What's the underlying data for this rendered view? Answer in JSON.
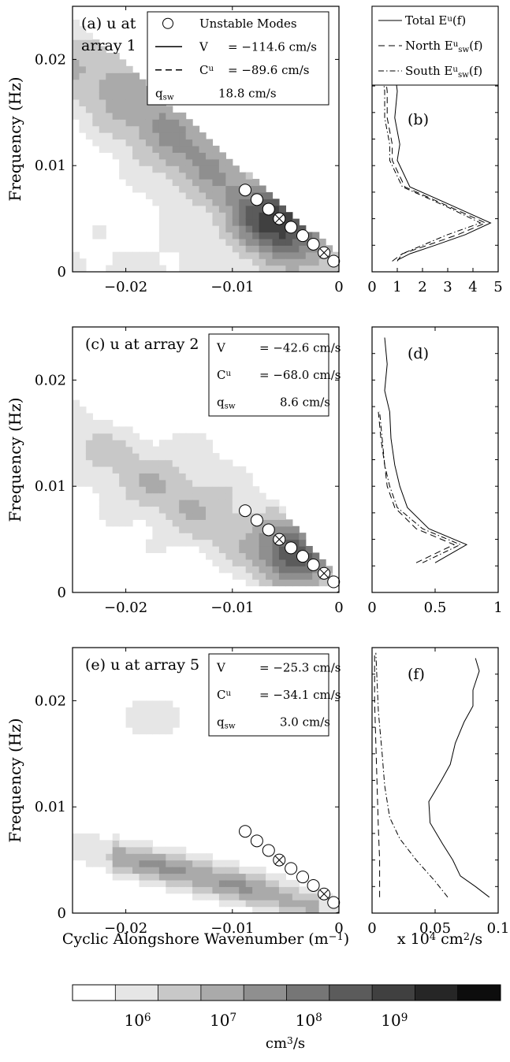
{
  "chart_data": [
    {
      "panel": "a",
      "type": "contour",
      "title": "(a) u at array 1",
      "ylabel": "Frequency (Hz)",
      "xlim": [
        -0.025,
        0
      ],
      "ylim": [
        0,
        0.025
      ],
      "xticks": [
        "-0.02",
        "-0.01",
        "0"
      ],
      "yticks": [
        "0",
        "0.01",
        "0.02"
      ],
      "legend": {
        "placement": "top-right",
        "entries": [
          {
            "symbol": "circle",
            "label": "Unstable Modes"
          },
          {
            "symbol": "solid",
            "name": "V",
            "value": "= −114.6 cm/s"
          },
          {
            "symbol": "dashed",
            "name": "C",
            "sup": "u",
            "value": "= −89.6 cm/s"
          },
          {
            "symbol": "none",
            "name": "q",
            "sub": "sw",
            "value": "18.8 cm/s"
          }
        ]
      },
      "lines": [
        {
          "style": "solid",
          "speed_cm_s": -114.6
        },
        {
          "style": "dashed",
          "speed_cm_s": -89.6
        }
      ],
      "unstable_modes": [
        {
          "k": -0.0088,
          "f": 0.0077
        },
        {
          "k": -0.0077,
          "f": 0.0068
        },
        {
          "k": -0.0066,
          "f": 0.0059
        },
        {
          "k": -0.0056,
          "f": 0.005,
          "marked": true
        },
        {
          "k": -0.0045,
          "f": 0.0042
        },
        {
          "k": -0.0034,
          "f": 0.0034
        },
        {
          "k": -0.0024,
          "f": 0.0026
        },
        {
          "k": -0.0014,
          "f": 0.0018,
          "marked": true
        },
        {
          "k": -0.0005,
          "f": 0.001
        }
      ]
    },
    {
      "panel": "b",
      "type": "line",
      "label": "(b)",
      "xlim": [
        0,
        5
      ],
      "xticks": [
        "0",
        "1",
        "2",
        "3",
        "4",
        "5"
      ],
      "ylim": [
        0,
        0.025
      ],
      "legend": {
        "placement": "top",
        "entries": [
          {
            "style": "solid",
            "label": "Total E",
            "sup": "u",
            "tail": "(f)"
          },
          {
            "style": "dashed",
            "label": "North E",
            "sup": "u",
            "sub": "sw",
            "tail": "(f)"
          },
          {
            "style": "dashdot",
            "label": "South E",
            "sup": "u",
            "sub": "sw",
            "tail": "(f)"
          }
        ]
      },
      "series": [
        {
          "style": "solid",
          "f": [
            0.0011,
            0.0017,
            0.0025,
            0.0035,
            0.0046,
            0.0062,
            0.008,
            0.0105,
            0.012,
            0.0145,
            0.017,
            0.019,
            0.0215,
            0.0235
          ],
          "E": [
            1.0,
            1.5,
            2.5,
            3.7,
            4.7,
            3.2,
            1.5,
            1.0,
            1.1,
            0.9,
            1.0,
            0.9,
            0.8,
            0.6
          ]
        },
        {
          "style": "dashed",
          "f": [
            0.001,
            0.0017,
            0.0025,
            0.0035,
            0.0046,
            0.0062,
            0.008,
            0.0105,
            0.012,
            0.0145,
            0.017,
            0.019,
            0.0215,
            0.0235
          ],
          "E": [
            0.8,
            1.2,
            2.2,
            3.4,
            4.5,
            3.0,
            1.3,
            0.8,
            0.8,
            0.6,
            0.6,
            0.5,
            0.4,
            0.4
          ]
        },
        {
          "style": "dashdot",
          "f": [
            0.001,
            0.0017,
            0.0025,
            0.0035,
            0.0046,
            0.0062,
            0.008,
            0.0105,
            0.012,
            0.0145,
            0.017,
            0.019,
            0.0215,
            0.0235
          ],
          "E": [
            1.0,
            1.2,
            2.0,
            3.0,
            4.3,
            2.9,
            1.2,
            0.7,
            0.7,
            0.5,
            0.5,
            0.4,
            0.4,
            0.3
          ]
        }
      ]
    },
    {
      "panel": "c",
      "type": "contour",
      "title": "(c) u at array 2",
      "ylabel": "Frequency (Hz)",
      "xlim": [
        -0.025,
        0
      ],
      "ylim": [
        0,
        0.025
      ],
      "xticks": [
        "-0.02",
        "-0.01",
        "0"
      ],
      "yticks": [
        "0",
        "0.01",
        "0.02"
      ],
      "legend": {
        "placement": "top-right",
        "entries": [
          {
            "symbol": "none",
            "name": "V",
            "value": "= −42.6 cm/s"
          },
          {
            "symbol": "none",
            "name": "C",
            "sup": "u",
            "value": "= −68.0 cm/s"
          },
          {
            "symbol": "none",
            "name": "q",
            "sub": "sw",
            "value": "8.6 cm/s"
          }
        ]
      },
      "lines": [
        {
          "style": "solid",
          "speed_cm_s": -42.6
        },
        {
          "style": "dashed",
          "speed_cm_s": -68.0
        }
      ],
      "unstable_modes": [
        {
          "k": -0.0088,
          "f": 0.0077
        },
        {
          "k": -0.0077,
          "f": 0.0068
        },
        {
          "k": -0.0066,
          "f": 0.0059
        },
        {
          "k": -0.0056,
          "f": 0.005,
          "marked": true
        },
        {
          "k": -0.0045,
          "f": 0.0042
        },
        {
          "k": -0.0034,
          "f": 0.0034
        },
        {
          "k": -0.0024,
          "f": 0.0026
        },
        {
          "k": -0.0014,
          "f": 0.0018,
          "marked": true
        },
        {
          "k": -0.0005,
          "f": 0.001
        }
      ]
    },
    {
      "panel": "d",
      "type": "line",
      "label": "(d)",
      "xlim": [
        0,
        1
      ],
      "xticks": [
        "0",
        "0.5",
        "1"
      ],
      "ylim": [
        0,
        0.025
      ],
      "series": [
        {
          "style": "solid",
          "f": [
            0.0028,
            0.0045,
            0.006,
            0.008,
            0.01,
            0.012,
            0.0145,
            0.017,
            0.019,
            0.0215,
            0.024
          ],
          "E": [
            0.5,
            0.75,
            0.45,
            0.28,
            0.22,
            0.18,
            0.15,
            0.14,
            0.1,
            0.12,
            0.1
          ]
        },
        {
          "style": "dashed",
          "f": [
            0.0028,
            0.0045,
            0.006,
            0.008,
            0.01,
            0.012,
            0.0145,
            0.017
          ],
          "E": [
            0.35,
            0.65,
            0.35,
            0.18,
            0.12,
            0.1,
            0.07,
            0.05
          ]
        },
        {
          "style": "dashdot",
          "f": [
            0.0028,
            0.0045,
            0.006,
            0.008,
            0.01,
            0.012,
            0.0145,
            0.017
          ],
          "E": [
            0.4,
            0.7,
            0.4,
            0.2,
            0.14,
            0.1,
            0.08,
            0.06
          ]
        }
      ]
    },
    {
      "panel": "e",
      "type": "contour",
      "title": "(e) u at array 5",
      "ylabel": "Frequency (Hz)",
      "xlabel": "Cyclic Alongshore Wavenumber (m",
      "xlabel_sup": "−1",
      "xlabel_tail": ")",
      "xlim": [
        -0.025,
        0
      ],
      "ylim": [
        0,
        0.025
      ],
      "xticks": [
        "-0.02",
        "-0.01",
        "0"
      ],
      "yticks": [
        "0",
        "0.01",
        "0.02"
      ],
      "legend": {
        "placement": "top-right",
        "entries": [
          {
            "symbol": "none",
            "name": "V",
            "value": "= −25.3 cm/s"
          },
          {
            "symbol": "none",
            "name": "C",
            "sup": "u",
            "value": "= −34.1 cm/s"
          },
          {
            "symbol": "none",
            "name": "q",
            "sub": "sw",
            "value": "3.0 cm/s"
          }
        ]
      },
      "lines": [
        {
          "style": "solid",
          "speed_cm_s": -25.3
        },
        {
          "style": "dashed",
          "speed_cm_s": -34.1
        }
      ],
      "unstable_modes": [
        {
          "k": -0.0088,
          "f": 0.0077
        },
        {
          "k": -0.0077,
          "f": 0.0068
        },
        {
          "k": -0.0066,
          "f": 0.0059
        },
        {
          "k": -0.0056,
          "f": 0.005,
          "marked": true
        },
        {
          "k": -0.0045,
          "f": 0.0042
        },
        {
          "k": -0.0034,
          "f": 0.0034
        },
        {
          "k": -0.0024,
          "f": 0.0026
        },
        {
          "k": -0.0014,
          "f": 0.0018,
          "marked": true
        },
        {
          "k": -0.0005,
          "f": 0.001
        }
      ]
    },
    {
      "panel": "f",
      "type": "line",
      "label": "(f)",
      "xlim": [
        0,
        0.1
      ],
      "xticks": [
        "0",
        "0.05",
        "0.1"
      ],
      "ylim": [
        0,
        0.025
      ],
      "xlabel": "x 10",
      "xlabel_sup": "4",
      "xlabel_unit": " cm",
      "xlabel_unit_sup": "2",
      "xlabel_tail": "/s",
      "series": [
        {
          "style": "solid",
          "f": [
            0.0015,
            0.0025,
            0.0035,
            0.005,
            0.0065,
            0.0085,
            0.0105,
            0.0125,
            0.014,
            0.016,
            0.018,
            0.0195,
            0.021,
            0.0228,
            0.024
          ],
          "E": [
            0.093,
            0.082,
            0.07,
            0.064,
            0.056,
            0.046,
            0.045,
            0.055,
            0.062,
            0.066,
            0.073,
            0.08,
            0.08,
            0.085,
            0.082
          ]
        },
        {
          "style": "dashed",
          "f": [
            0.0015,
            0.005,
            0.008,
            0.012,
            0.016,
            0.02,
            0.0245
          ],
          "E": [
            0.006,
            0.006,
            0.005,
            0.004,
            0.003,
            0.002,
            0.002
          ]
        },
        {
          "style": "dashdot",
          "f": [
            0.0015,
            0.003,
            0.005,
            0.007,
            0.009,
            0.012,
            0.015,
            0.019,
            0.0245
          ],
          "E": [
            0.06,
            0.05,
            0.035,
            0.022,
            0.014,
            0.01,
            0.008,
            0.005,
            0.003
          ]
        }
      ]
    },
    {
      "panel": "colorbar",
      "type": "colorbar",
      "label": "cm",
      "label_sup": "3",
      "label_tail": "/s",
      "scale": "log",
      "levels": 10,
      "ticks": [
        {
          "base": "10",
          "exp": "6"
        },
        {
          "base": "10",
          "exp": "7"
        },
        {
          "base": "10",
          "exp": "8"
        },
        {
          "base": "10",
          "exp": "9"
        }
      ]
    }
  ]
}
